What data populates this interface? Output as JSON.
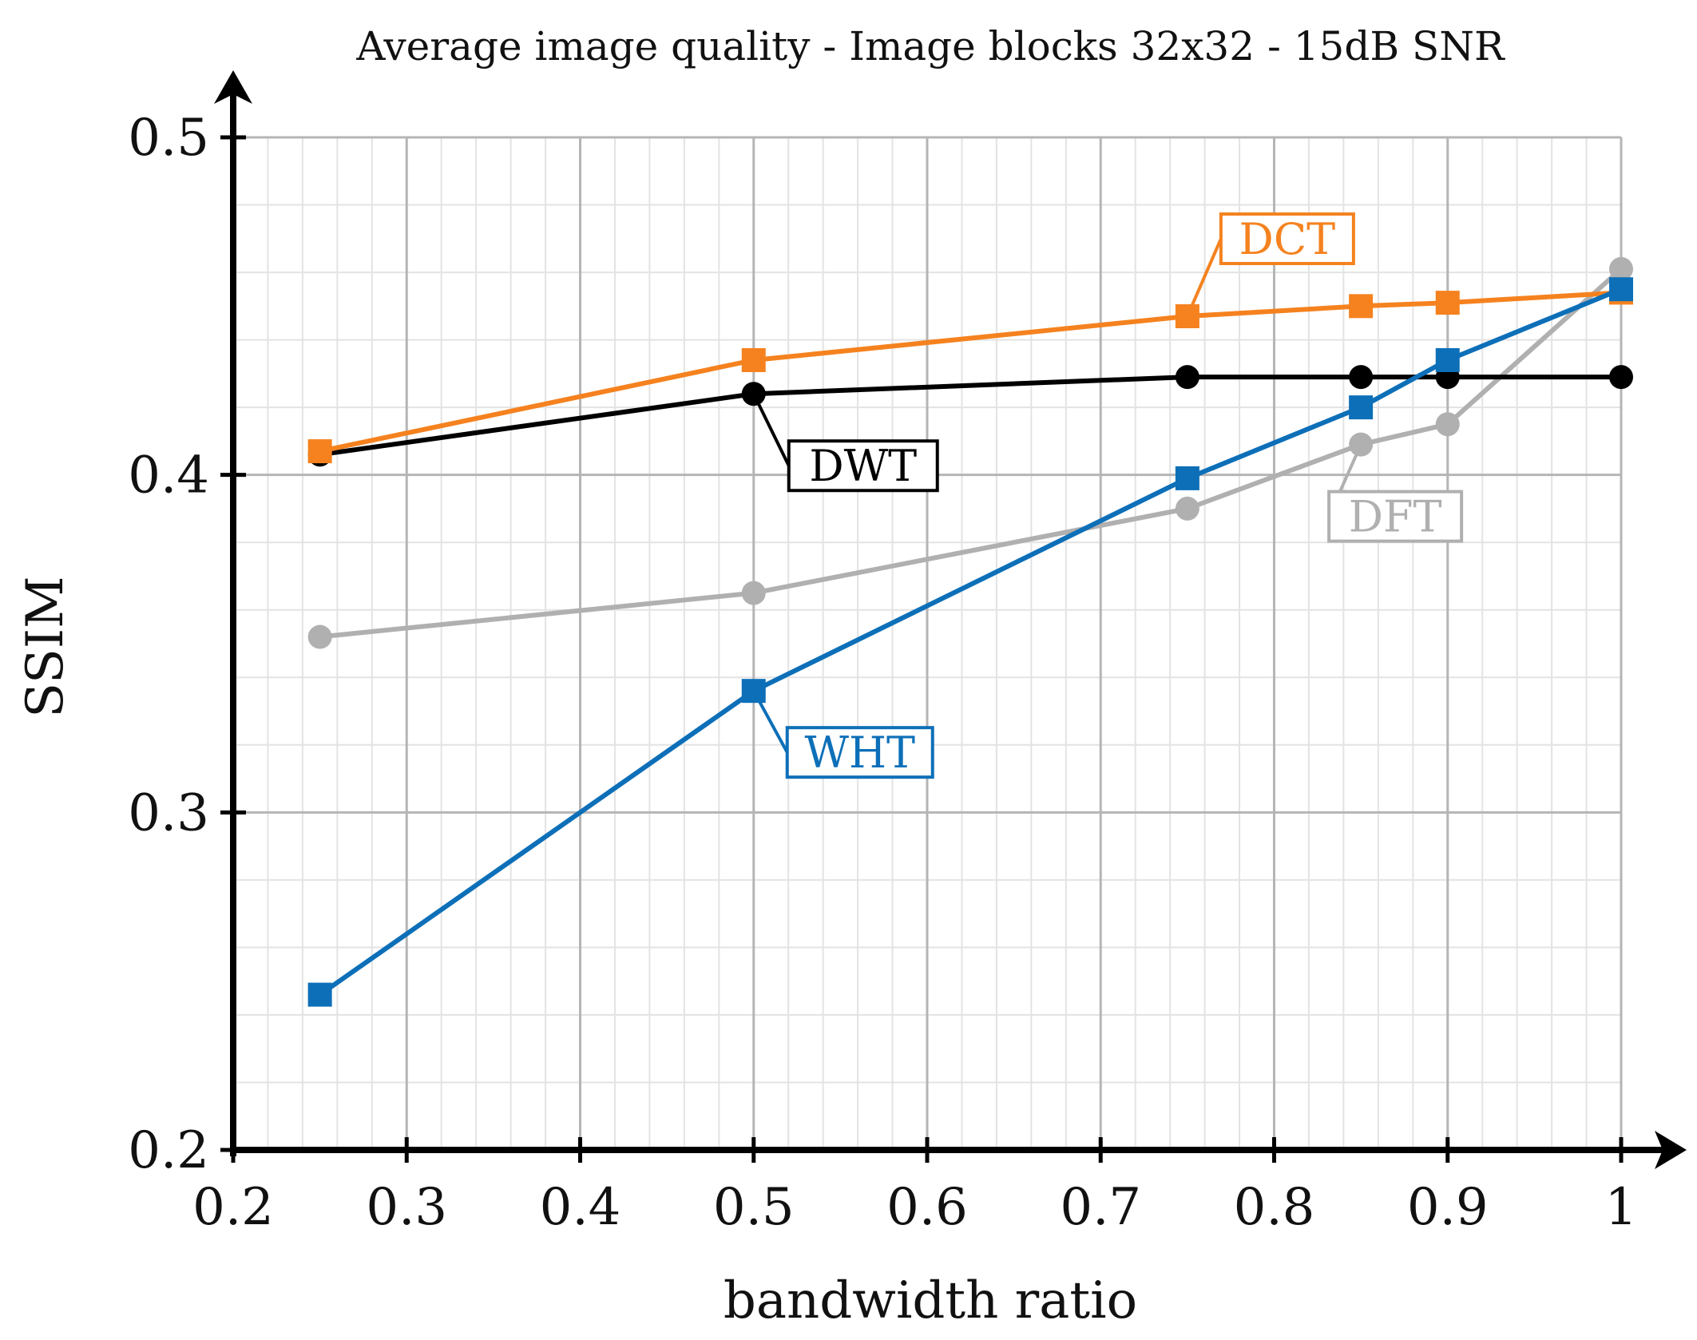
{
  "chart_data": {
    "type": "line",
    "title": "Average image quality - Image blocks 32x32 - 15dB SNR",
    "xlabel": "bandwidth ratio",
    "ylabel": "SSIM",
    "xlim": [
      0.2,
      1.0
    ],
    "ylim": [
      0.2,
      0.5
    ],
    "x_ticks": [
      0.2,
      0.3,
      0.4,
      0.5,
      0.6,
      0.7,
      0.8,
      0.9,
      1.0
    ],
    "x_tick_labels": [
      "0.2",
      "0.3",
      "0.4",
      "0.5",
      "0.6",
      "0.7",
      "0.8",
      "0.9",
      "1"
    ],
    "y_ticks": [
      0.2,
      0.3,
      0.4,
      0.5
    ],
    "y_tick_labels": [
      "0.2",
      "0.3",
      "0.4",
      "0.5"
    ],
    "grid": true,
    "x": [
      0.25,
      0.5,
      0.75,
      0.85,
      0.9,
      1.0
    ],
    "series": [
      {
        "name": "DCT",
        "color": "#f5821f",
        "marker": "square",
        "values": [
          0.407,
          0.434,
          0.447,
          0.45,
          0.451,
          0.454
        ]
      },
      {
        "name": "DWT",
        "color": "#000000",
        "marker": "circle",
        "values": [
          0.406,
          0.424,
          0.429,
          0.429,
          0.429,
          0.429
        ]
      },
      {
        "name": "DFT",
        "color": "#b0b0b0",
        "marker": "circle",
        "values": [
          0.352,
          0.365,
          0.39,
          0.409,
          0.415,
          0.461
        ]
      },
      {
        "name": "WHT",
        "color": "#0d6fb8",
        "marker": "square",
        "values": [
          0.246,
          0.336,
          0.399,
          0.42,
          0.434,
          0.455
        ]
      }
    ],
    "annotations": [
      {
        "series": "DCT",
        "text": "DCT"
      },
      {
        "series": "DWT",
        "text": "DWT"
      },
      {
        "series": "DFT",
        "text": "DFT"
      },
      {
        "series": "WHT",
        "text": "WHT"
      }
    ]
  }
}
